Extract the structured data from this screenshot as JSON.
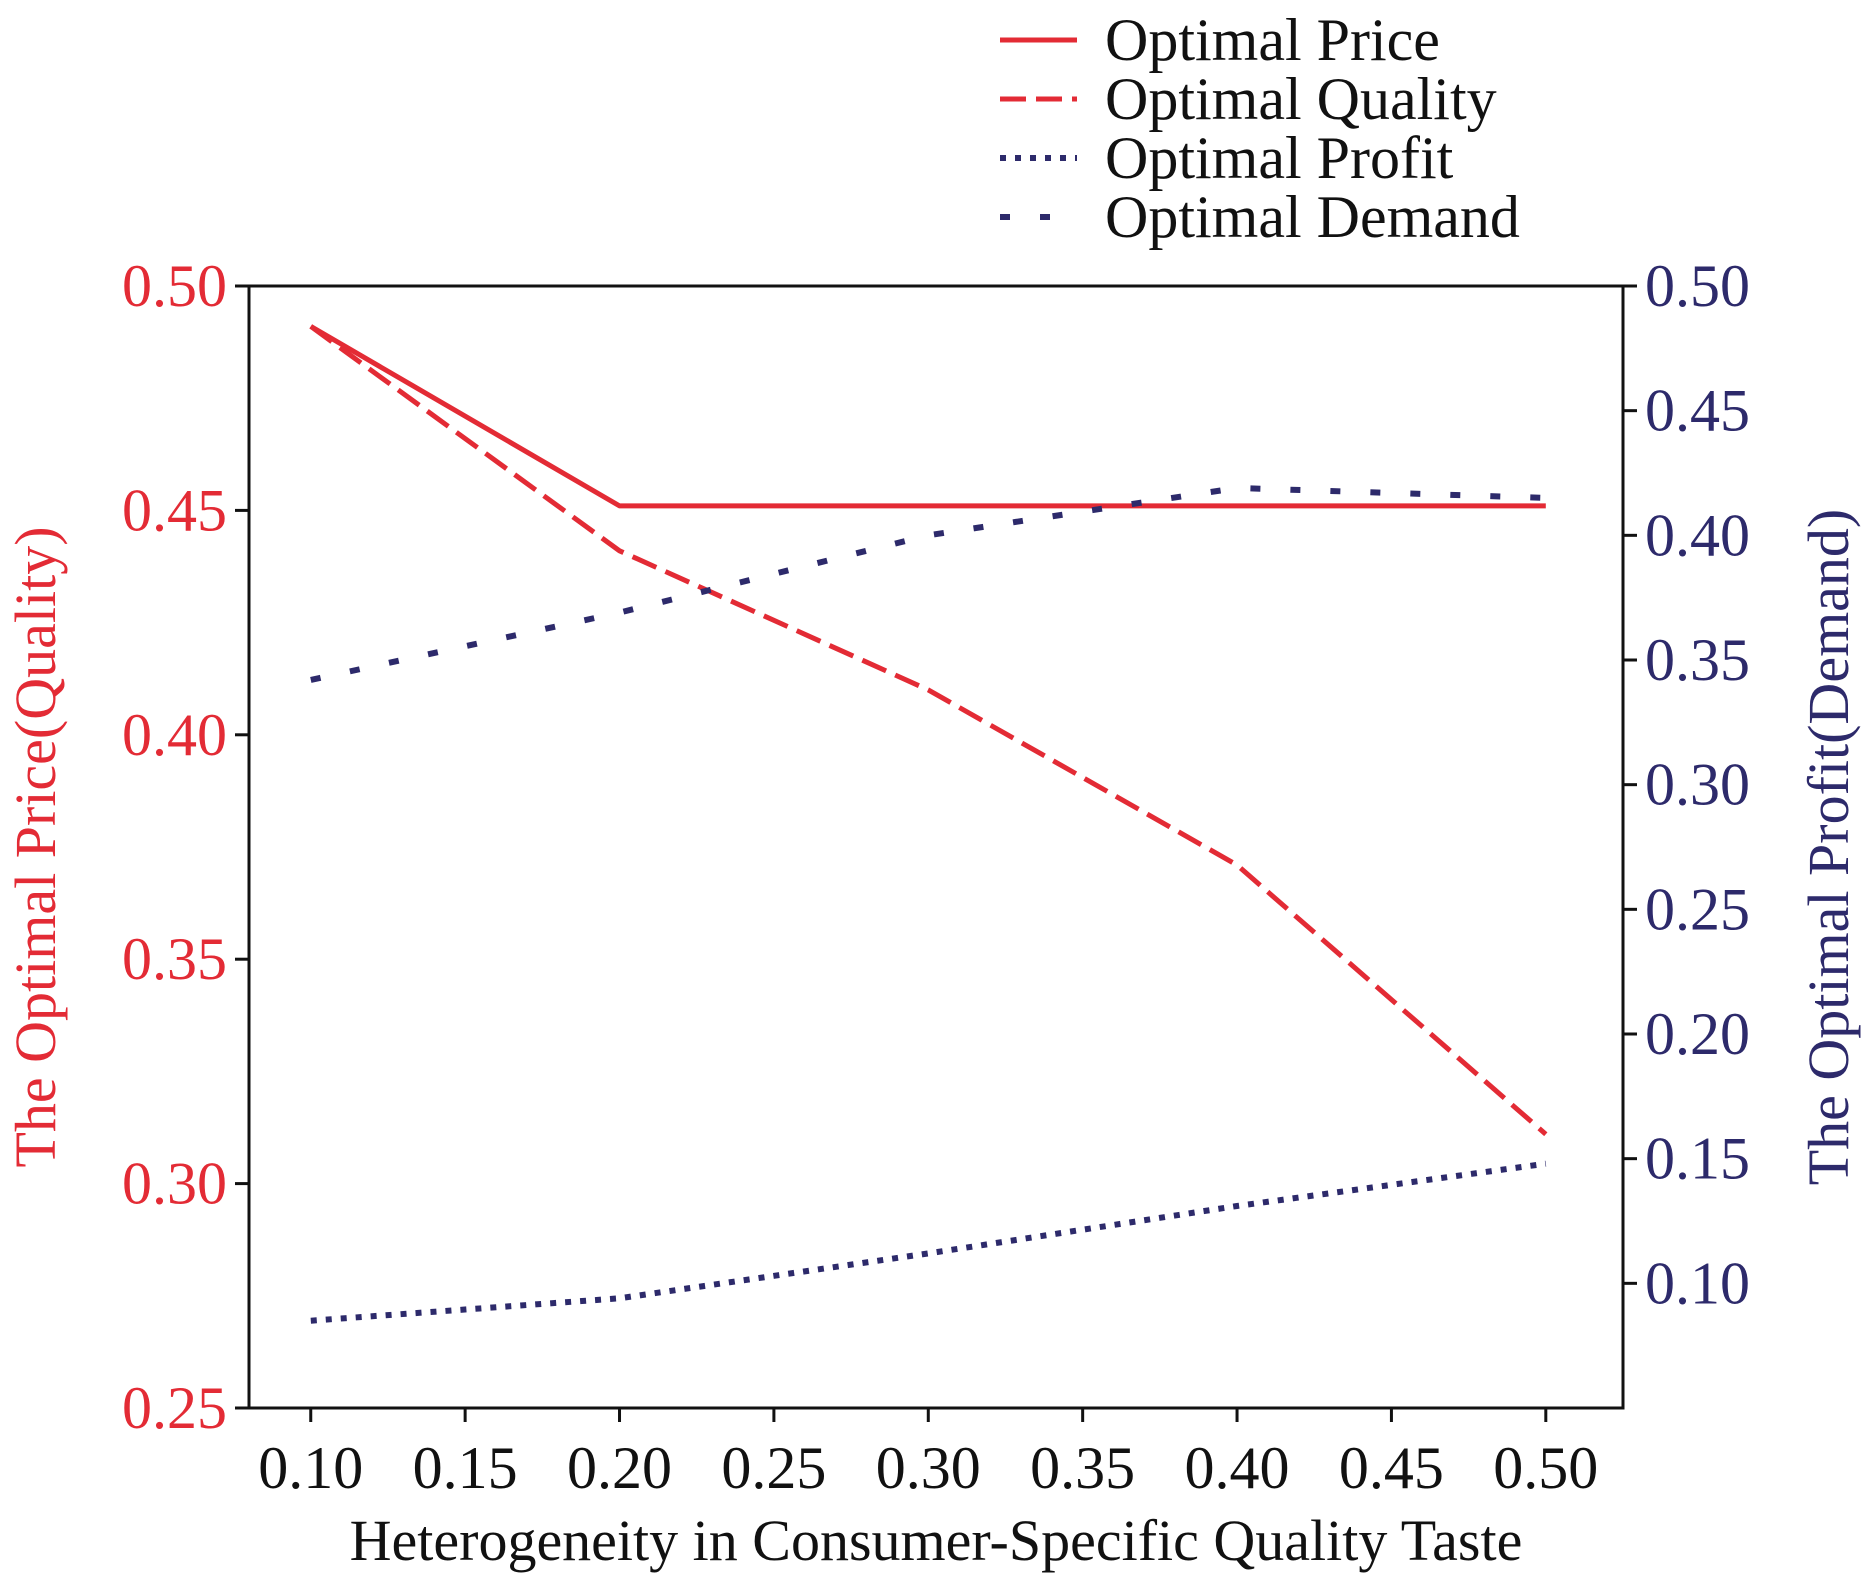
{
  "chart_data": {
    "type": "line",
    "title": "",
    "xlabel": "Heterogeneity in Consumer-Specific Quality Taste",
    "ylabel_left": "The Optimal Price(Quality)",
    "ylabel_right": "The Optimal Profit(Demand)",
    "xlim": [
      0.08,
      0.525
    ],
    "ylim_left": [
      0.25,
      0.5
    ],
    "ylim_right": [
      0.05,
      0.5
    ],
    "x_ticks": [
      0.1,
      0.15,
      0.2,
      0.25,
      0.3,
      0.35,
      0.4,
      0.45,
      0.5
    ],
    "x_tick_labels": [
      "0.10",
      "0.15",
      "0.20",
      "0.25",
      "0.30",
      "0.35",
      "0.40",
      "0.45",
      "0.50"
    ],
    "y_left_ticks": [
      0.25,
      0.3,
      0.35,
      0.4,
      0.45,
      0.5
    ],
    "y_left_tick_labels": [
      "0.25",
      "0.30",
      "0.35",
      "0.40",
      "0.45",
      "0.50"
    ],
    "y_right_ticks": [
      0.1,
      0.15,
      0.2,
      0.25,
      0.3,
      0.35,
      0.4,
      0.45,
      0.5
    ],
    "y_right_tick_labels": [
      "0.10",
      "0.15",
      "0.20",
      "0.25",
      "0.30",
      "0.35",
      "0.40",
      "0.45",
      "0.50"
    ],
    "grid": false,
    "legend_position": "top-right, above plot",
    "series": [
      {
        "name": "Optimal Price",
        "axis": "left",
        "style": "solid",
        "color": "#e32b35",
        "x": [
          0.1,
          0.2,
          0.3,
          0.4,
          0.5
        ],
        "values": [
          0.491,
          0.451,
          0.451,
          0.451,
          0.451
        ]
      },
      {
        "name": "Optimal Quality",
        "axis": "left",
        "style": "dashed",
        "color": "#e32b35",
        "x": [
          0.1,
          0.2,
          0.3,
          0.4,
          0.5
        ],
        "values": [
          0.491,
          0.441,
          0.41,
          0.371,
          0.311
        ]
      },
      {
        "name": "Optimal Profit",
        "axis": "right",
        "style": "dotted",
        "color": "#2d2a6b",
        "x": [
          0.1,
          0.2,
          0.3,
          0.4,
          0.5
        ],
        "values": [
          0.085,
          0.094,
          0.112,
          0.131,
          0.148
        ]
      },
      {
        "name": "Optimal Demand",
        "axis": "right",
        "style": "dashdot-sparse",
        "color": "#2d2a6b",
        "x": [
          0.1,
          0.2,
          0.3,
          0.4,
          0.5
        ],
        "values": [
          0.342,
          0.369,
          0.4,
          0.419,
          0.415
        ]
      }
    ]
  },
  "colors": {
    "left_axis": "#e32b35",
    "right_axis": "#2d2a6b",
    "frame": "#111111"
  }
}
